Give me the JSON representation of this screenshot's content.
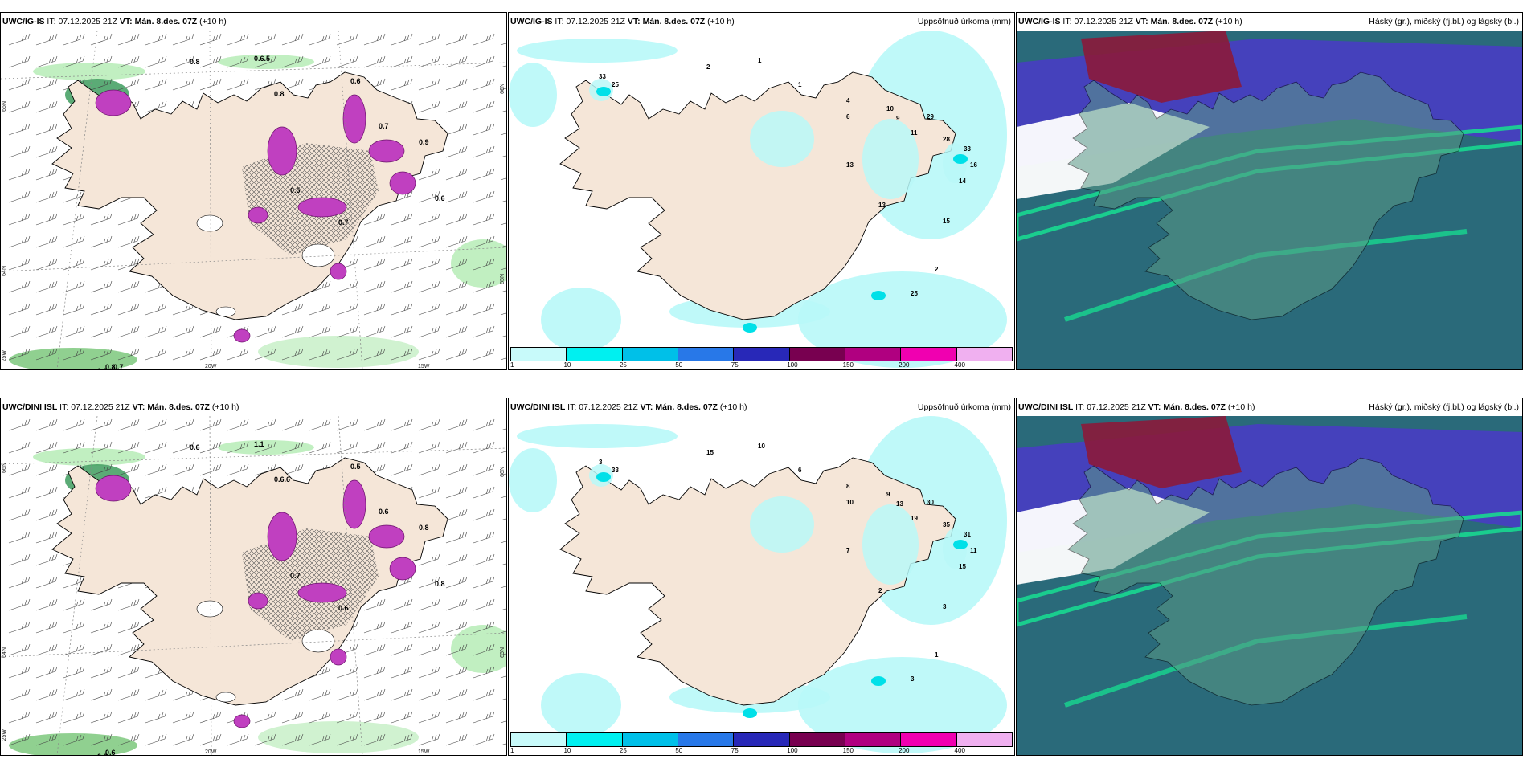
{
  "panels": [
    {
      "model": "UWC/IG-IS",
      "it_label": "IT:",
      "it_value": "07.12.2025 21Z",
      "vt_label": "VT:",
      "vt_value": "Mán. 8.des. 07Z",
      "lead": "(+10 h)",
      "title_right": ""
    },
    {
      "model": "UWC/IG-IS",
      "it_label": "IT:",
      "it_value": "07.12.2025 21Z",
      "vt_label": "VT:",
      "vt_value": "Mán. 8.des. 07Z",
      "lead": "(+10 h)",
      "title_right": "Uppsöfnuð úrkoma (mm)"
    },
    {
      "model": "UWC/IG-IS",
      "it_label": "IT:",
      "it_value": "07.12.2025 21Z",
      "vt_label": "VT:",
      "vt_value": "Mán. 8.des. 07Z",
      "lead": "(+10 h)",
      "title_right": "Háský (gr.), miðský (fj.bl.) og lágský (bl.)"
    },
    {
      "model": "UWC/DINI ISL",
      "it_label": "IT:",
      "it_value": "07.12.2025 21Z",
      "vt_label": "VT:",
      "vt_value": "Mán. 8.des. 07Z",
      "lead": "(+10 h)",
      "title_right": ""
    },
    {
      "model": "UWC/DINI ISL",
      "it_label": "IT:",
      "it_value": "07.12.2025 21Z",
      "vt_label": "VT:",
      "vt_value": "Mán. 8.des. 07Z",
      "lead": "(+10 h)",
      "title_right": "Uppsöfnuð úrkoma (mm)"
    },
    {
      "model": "UWC/DINI ISL",
      "it_label": "IT:",
      "it_value": "07.12.2025 21Z",
      "vt_label": "VT:",
      "vt_value": "Mán. 8.des. 07Z",
      "lead": "(+10 h)",
      "title_right": "Háský (gr.), miðský (fj.bl.) og lágský (bl.)"
    }
  ],
  "axis_labels": {
    "lat_66": "66N",
    "lat_64": "64N",
    "lat_65": "65N",
    "lon_20": "20W",
    "lon_15": "15W",
    "lon_25": "25W"
  },
  "colorbar": {
    "labels": [
      "1",
      "10",
      "25",
      "50",
      "75",
      "100",
      "150",
      "200",
      "400"
    ],
    "colors": [
      "#c8fafa",
      "#00f0f0",
      "#00c0e8",
      "#2878e8",
      "#2828b8",
      "#780050",
      "#b00080",
      "#f000b0",
      "#f0b0f0"
    ]
  },
  "colors": {
    "land": "#f5e6d8",
    "snow_green": "#a8e6a8",
    "snow_dark": "#2e8b4a",
    "precip_pink": "#c040c0",
    "precip_cyan": "#b8f8f8",
    "cloud_high": "#8b1a3a",
    "cloud_mid": "#4a3ac8",
    "cloud_low": "#2a6a7a",
    "cloud_green": "#18d890"
  },
  "precip_labels_top": [
    "33",
    "25",
    "2",
    "1",
    "1",
    "4",
    "6",
    "10",
    "9",
    "11",
    "29",
    "28",
    "33",
    "16",
    "14",
    "13",
    "13",
    "15",
    "25",
    "2"
  ],
  "precip_labels_bottom": [
    "3",
    "33",
    "15",
    "10",
    "6",
    "8",
    "10",
    "9",
    "13",
    "19",
    "30",
    "35",
    "31",
    "11",
    "15",
    "7",
    "2",
    "3",
    "3",
    "1"
  ],
  "snow_labels_top": [
    "0.8",
    "0.6.5",
    "0.8",
    "0.6",
    "0.7",
    "0.9",
    "0.5",
    "0.7",
    "0.6",
    "0.8",
    "0.8",
    "0.7"
  ],
  "snow_labels_bottom": [
    "0.6",
    "1.1",
    "0.6.6",
    "0.5",
    "0.6",
    "0.8",
    "0.7",
    "0.6",
    "0.8",
    "0.6",
    "0.6"
  ]
}
